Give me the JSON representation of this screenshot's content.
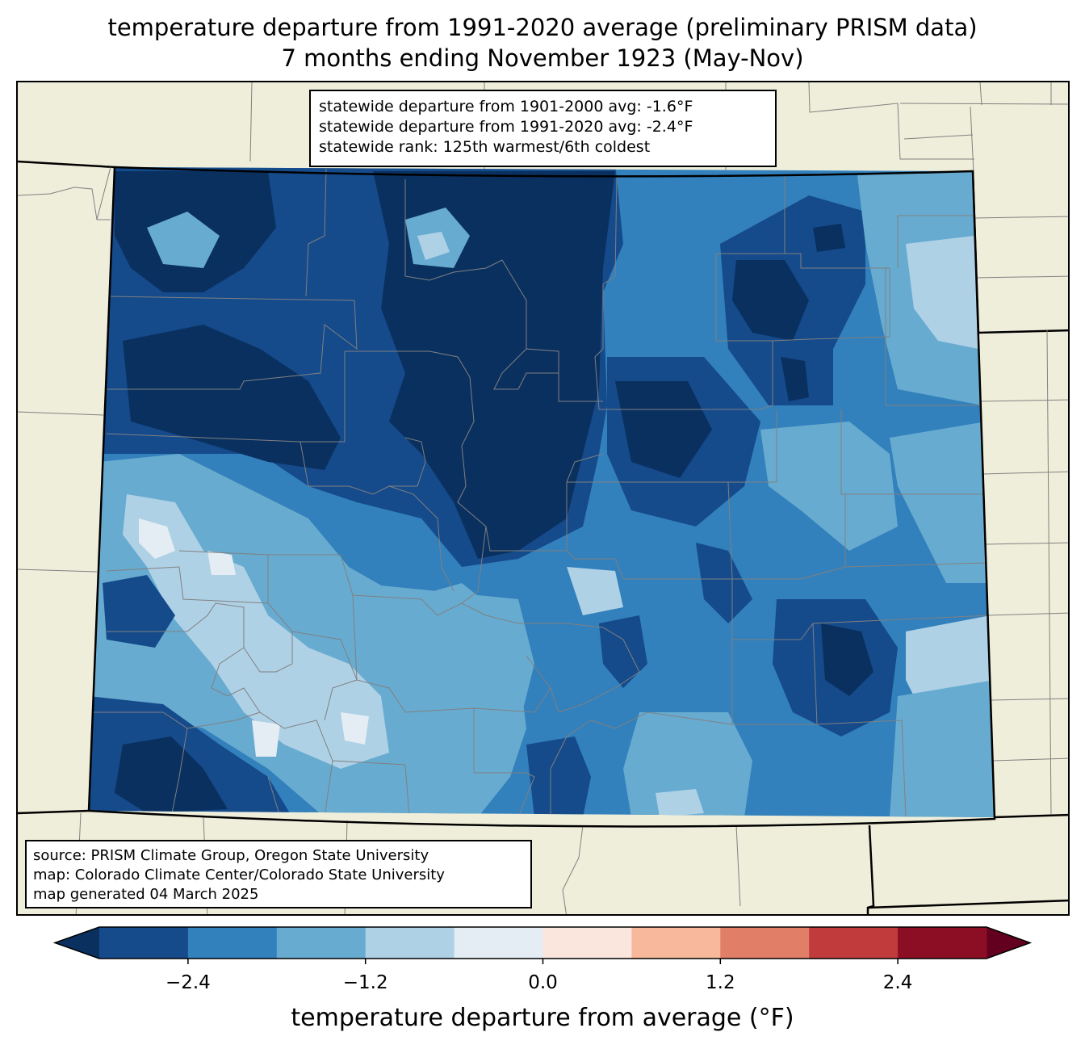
{
  "title": {
    "line1": "temperature departure from 1991-2020 average (preliminary PRISM data)",
    "line2": "7 months ending November 1923 (May-Nov)"
  },
  "stats_box": {
    "line1": "statewide departure from 1901-2000 avg: -1.6°F",
    "line2": "statewide departure from 1991-2020 avg: -2.4°F",
    "line3": "statewide rank: 125th warmest/6th coldest"
  },
  "source_box": {
    "line1": "source: PRISM Climate Group, Oregon State University",
    "line2": "map: Colorado Climate Center/Colorado State University",
    "line3": "map generated 04 March 2025"
  },
  "colorbar": {
    "label": "temperature departure from average (°F)",
    "ticks": [
      {
        "value": -2.4,
        "label": "−2.4"
      },
      {
        "value": -1.2,
        "label": "−1.2"
      },
      {
        "value": 0.0,
        "label": "0.0"
      },
      {
        "value": 1.2,
        "label": "1.2"
      },
      {
        "value": 2.4,
        "label": "2.4"
      }
    ],
    "range": [
      -3.0,
      3.0
    ],
    "bins": [
      {
        "from": -3.0,
        "to": -2.4,
        "color": "#154a8b"
      },
      {
        "from": -2.4,
        "to": -1.8,
        "color": "#3280bc"
      },
      {
        "from": -1.8,
        "to": -1.2,
        "color": "#68abd0"
      },
      {
        "from": -1.2,
        "to": -0.6,
        "color": "#afd1e6"
      },
      {
        "from": -0.6,
        "to": 0.0,
        "color": "#e3edf3"
      },
      {
        "from": 0.0,
        "to": 0.6,
        "color": "#fae6dc"
      },
      {
        "from": 0.6,
        "to": 1.2,
        "color": "#f7b89b"
      },
      {
        "from": 1.2,
        "to": 1.8,
        "color": "#e07e68"
      },
      {
        "from": 1.8,
        "to": 2.4,
        "color": "#c13b3d"
      },
      {
        "from": 2.4,
        "to": 3.0,
        "color": "#8b0e24"
      }
    ],
    "under_color": "#0a3060",
    "over_color": "#64001f"
  },
  "colors": {
    "land": "#efeedb",
    "county_line": "#808080",
    "state_line": "#000000"
  }
}
